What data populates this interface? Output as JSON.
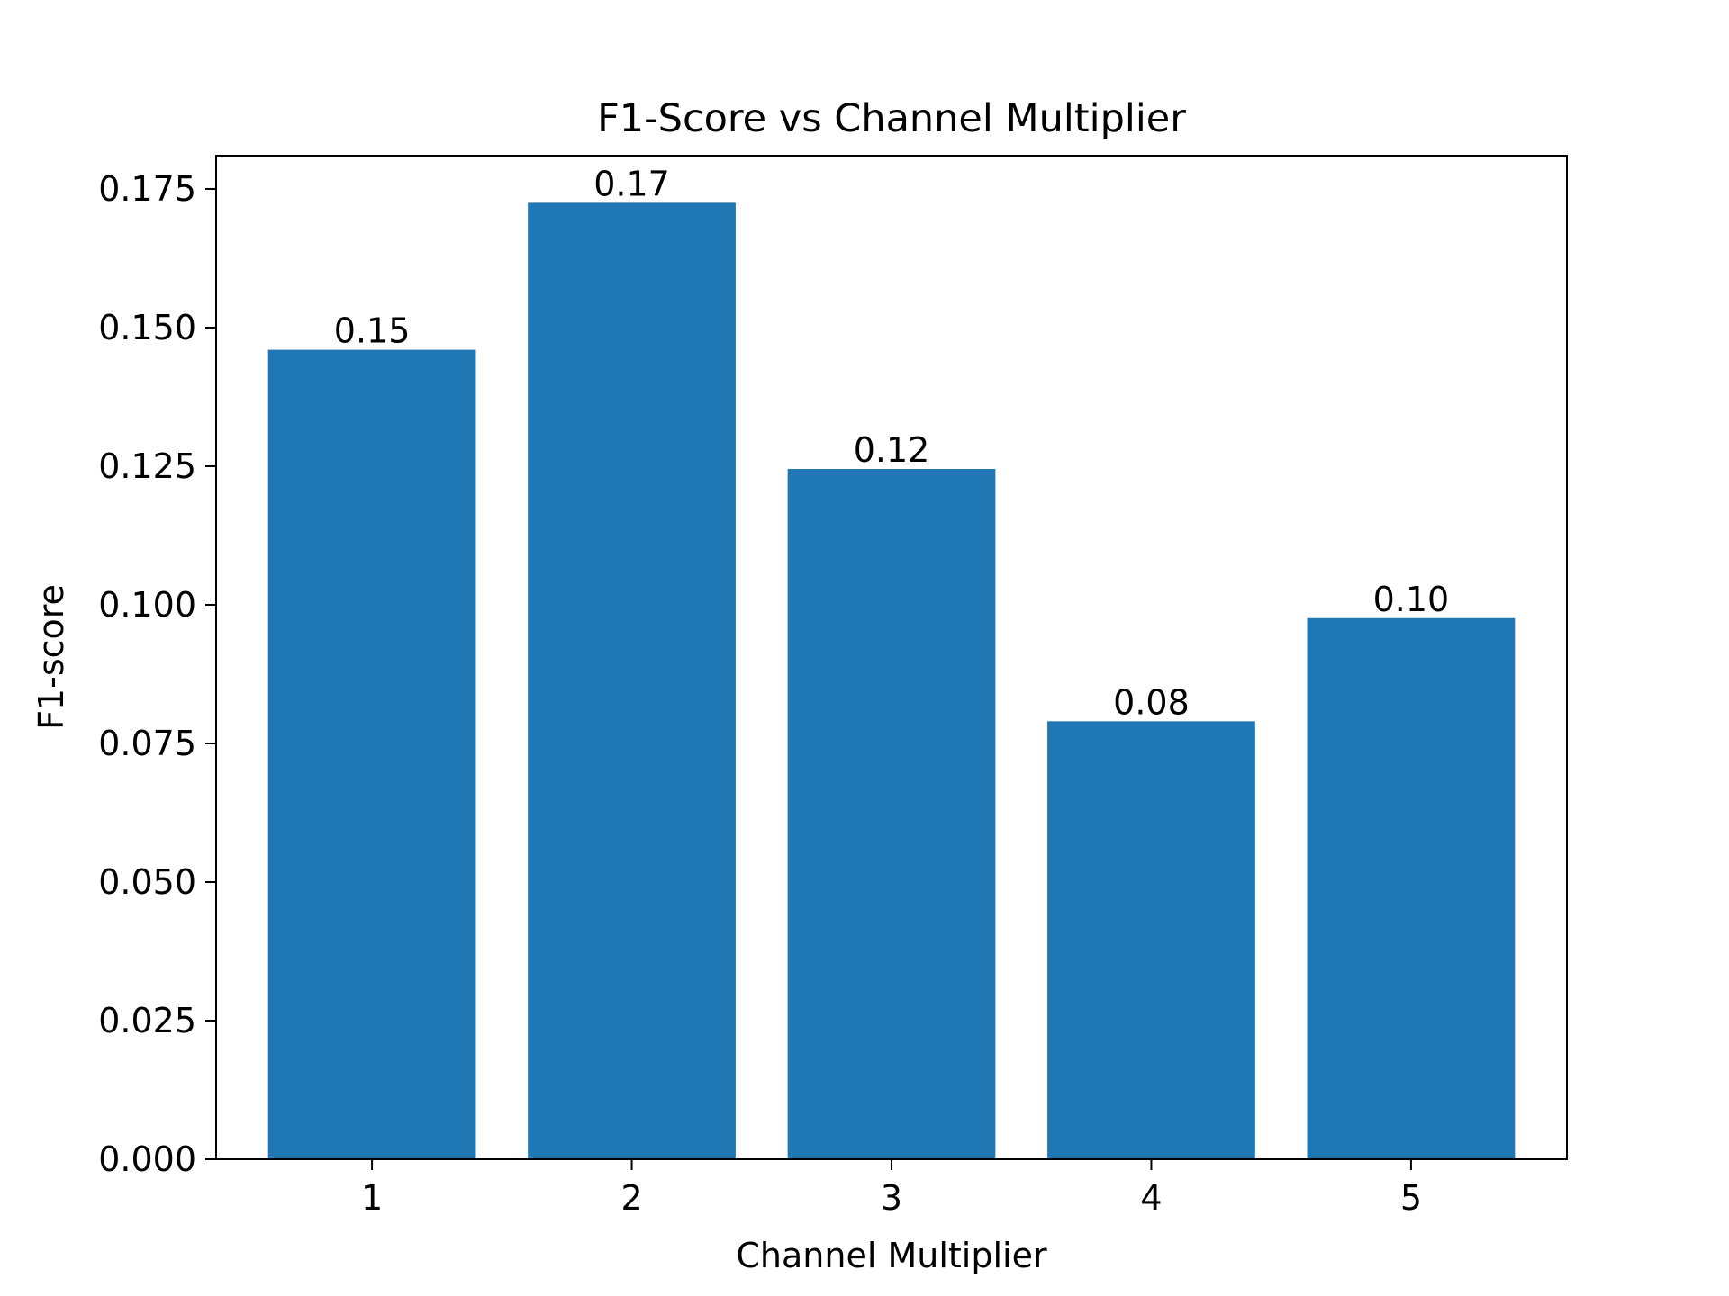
{
  "chart_data": {
    "type": "bar",
    "title": "F1-Score vs Channel Multiplier",
    "xlabel": "Channel Multiplier",
    "ylabel": "F1-score",
    "categories": [
      "1",
      "2",
      "3",
      "4",
      "5"
    ],
    "values": [
      0.146,
      0.1725,
      0.1245,
      0.079,
      0.0976
    ],
    "data_labels": [
      "0.15",
      "0.17",
      "0.12",
      "0.08",
      "0.10"
    ],
    "ylim": [
      0,
      0.181
    ],
    "yticks": [
      0,
      0.025,
      0.05,
      0.075,
      0.1,
      0.125,
      0.15,
      0.175
    ],
    "ytick_labels": [
      "0.000",
      "0.025",
      "0.050",
      "0.075",
      "0.100",
      "0.125",
      "0.150",
      "0.175"
    ],
    "grid": false,
    "colors": {
      "bar": "#1f77b4",
      "axis": "#000000",
      "background": "#ffffff"
    }
  }
}
